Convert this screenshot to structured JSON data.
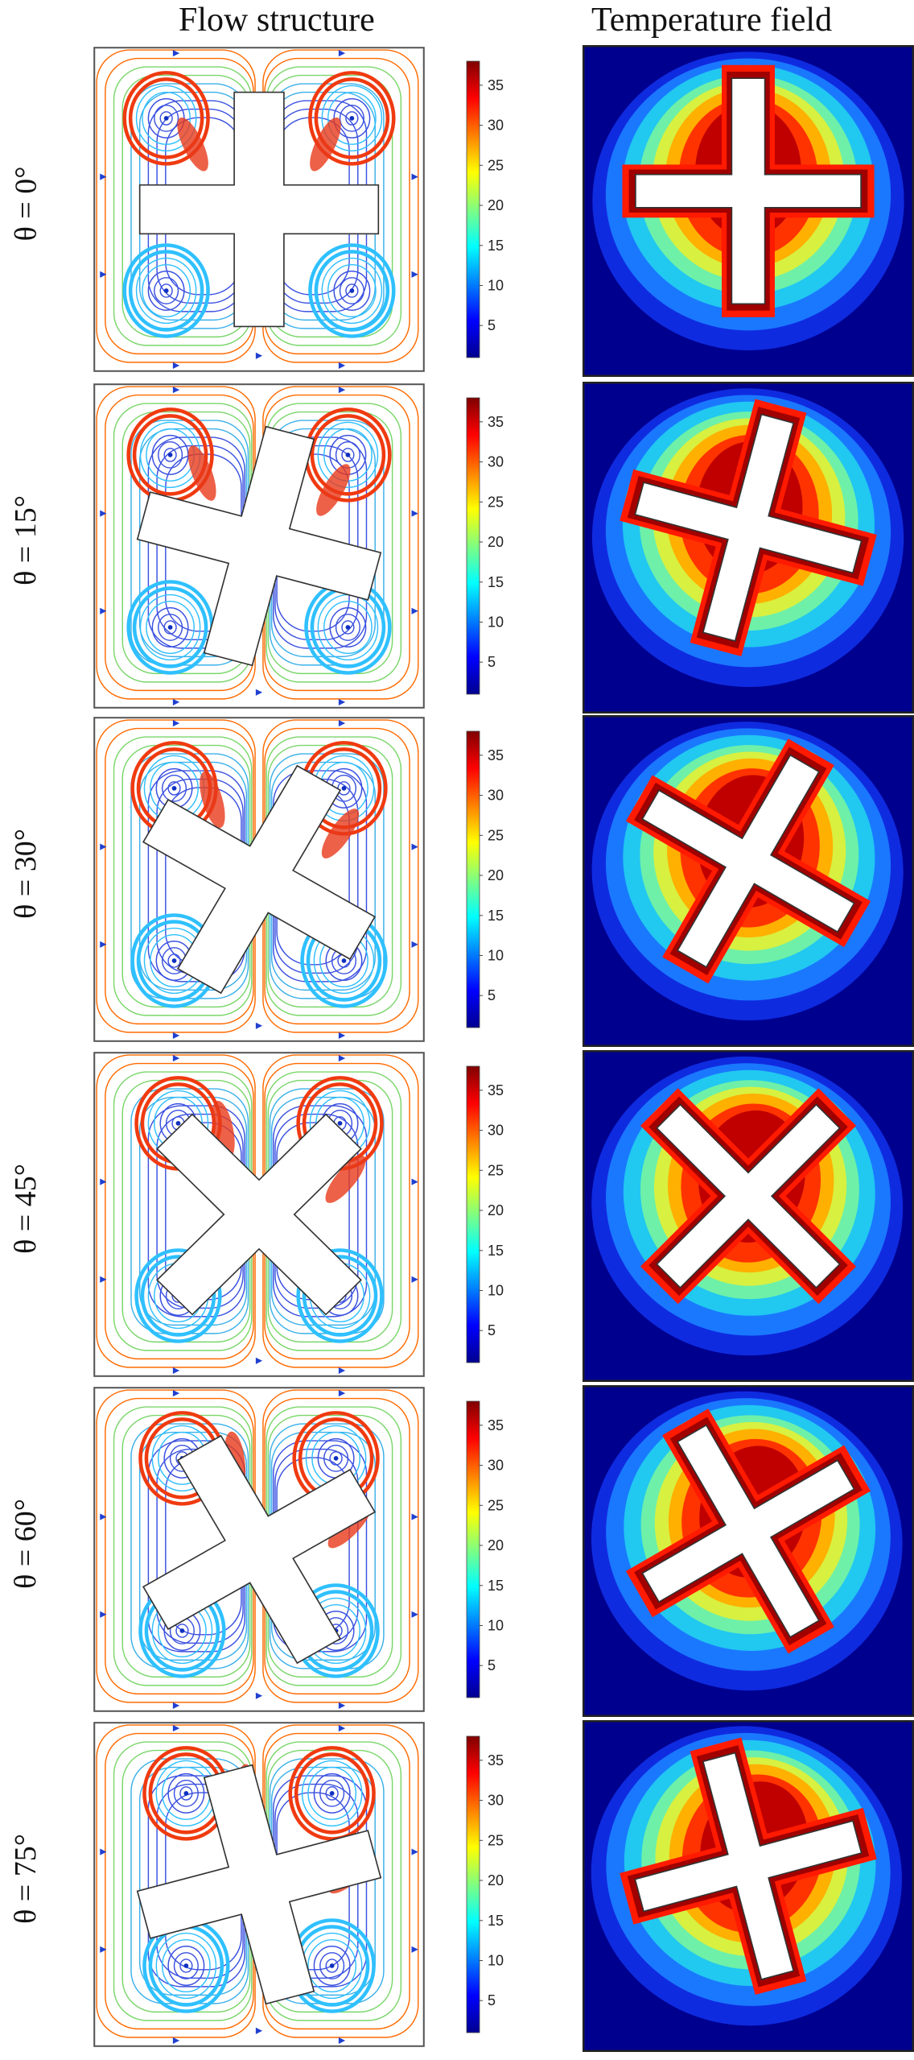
{
  "header": {
    "flow_title": "Flow structure",
    "temp_title": "Temperature field"
  },
  "colorbar": {
    "ticks": [
      "35",
      "30",
      "25",
      "20",
      "15",
      "10",
      "5"
    ],
    "tick_values": [
      35,
      30,
      25,
      20,
      15,
      10,
      5
    ],
    "range": [
      1,
      38
    ]
  },
  "rows": [
    {
      "label": "θ = 0°",
      "angle": 0
    },
    {
      "label": "θ = 15°",
      "angle": 15
    },
    {
      "label": "θ = 30°",
      "angle": 30
    },
    {
      "label": "θ = 45°",
      "angle": 45
    },
    {
      "label": "θ = 60°",
      "angle": 60
    },
    {
      "label": "θ = 75°",
      "angle": 75
    }
  ],
  "colors": {
    "jet": [
      "#00008f",
      "#0000ff",
      "#0080ff",
      "#00ffff",
      "#80ff80",
      "#ffff00",
      "#ff8000",
      "#ff0000",
      "#800000"
    ],
    "frame": "#555555",
    "obstacle_fill": "#ffffff",
    "streamline": "#3a50e0"
  },
  "icons": {
    "obstacle": "cross-shaped-obstacle"
  }
}
